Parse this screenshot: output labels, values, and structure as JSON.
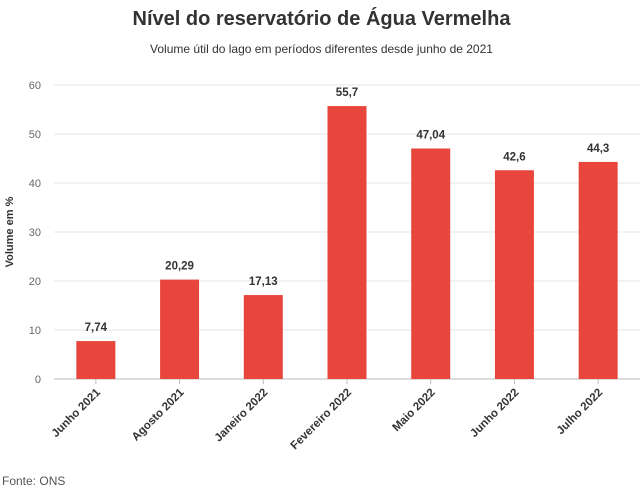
{
  "chart_data": {
    "type": "bar",
    "title": "Nível do reservatório de Água Vermelha",
    "subtitle": "Volume útil do lago em períodos diferentes desde junho de 2021",
    "categories": [
      "Junho 2021",
      "Agosto 2021",
      "Janeiro 2022",
      "Fevereiro 2022",
      "Maio 2022",
      "Junho 2022",
      "Julho 2022"
    ],
    "values": [
      7.74,
      20.29,
      17.13,
      55.7,
      47.04,
      42.6,
      44.3
    ],
    "value_labels": [
      "7,74",
      "20,29",
      "17,13",
      "55,7",
      "47,04",
      "42,6",
      "44,3"
    ],
    "xlabel": "",
    "ylabel": "Volume em %",
    "ylim": [
      0,
      60
    ],
    "yticks": [
      0,
      10,
      20,
      30,
      40,
      50,
      60
    ],
    "grid": true,
    "bar_color": "#e8453c",
    "source": "Fonte: ONS"
  }
}
